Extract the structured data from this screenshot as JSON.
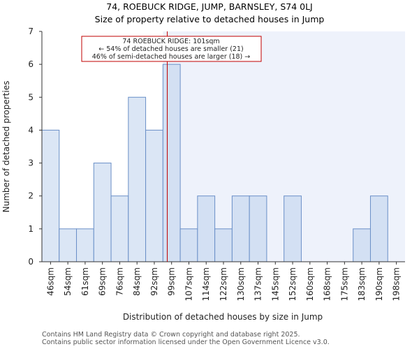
{
  "title_line1": "74, ROEBUCK RIDGE, JUMP, BARNSLEY, S74 0LJ",
  "title_line2": "Size of property relative to detached houses in Jump",
  "footer_line1": "Contains HM Land Registry data © Crown copyright and database right 2025.",
  "footer_line2": "Contains public sector information licensed under the Open Government Licence v3.0.",
  "colors": {
    "bar_fill_before": "#dbe6f5",
    "bar_fill_after": "#d3e0f3",
    "bar_stroke": "#6a8fc7",
    "highlight_region": "#eef2fb",
    "marker_line": "#c00000",
    "annotation_border": "#c00000",
    "axis": "#333333"
  },
  "chart_data": {
    "type": "bar",
    "title": "74, ROEBUCK RIDGE, JUMP, BARNSLEY, S74 0LJ",
    "subtitle": "Size of property relative to detached houses in Jump",
    "xlabel": "Distribution of detached houses by size in Jump",
    "ylabel": "Number of detached properties",
    "categories": [
      "46sqm",
      "54sqm",
      "61sqm",
      "69sqm",
      "76sqm",
      "84sqm",
      "92sqm",
      "99sqm",
      "107sqm",
      "114sqm",
      "122sqm",
      "130sqm",
      "137sqm",
      "145sqm",
      "152sqm",
      "160sqm",
      "168sqm",
      "175sqm",
      "183sqm",
      "190sqm",
      "198sqm"
    ],
    "values": [
      4,
      1,
      1,
      3,
      2,
      5,
      4,
      6,
      1,
      2,
      1,
      2,
      2,
      0,
      2,
      0,
      0,
      0,
      1,
      2,
      0
    ],
    "yticks": [
      "0",
      "1",
      "2",
      "3",
      "4",
      "5",
      "6",
      "7"
    ],
    "ylim": [
      0,
      7
    ],
    "grid": false,
    "marker": {
      "value_sqm": 101,
      "label_line1": "74 ROEBUCK RIDGE: 101sqm",
      "label_line2": "← 54% of detached houses are smaller (21)",
      "label_line3": "46% of semi-detached houses are larger (18) →"
    }
  }
}
